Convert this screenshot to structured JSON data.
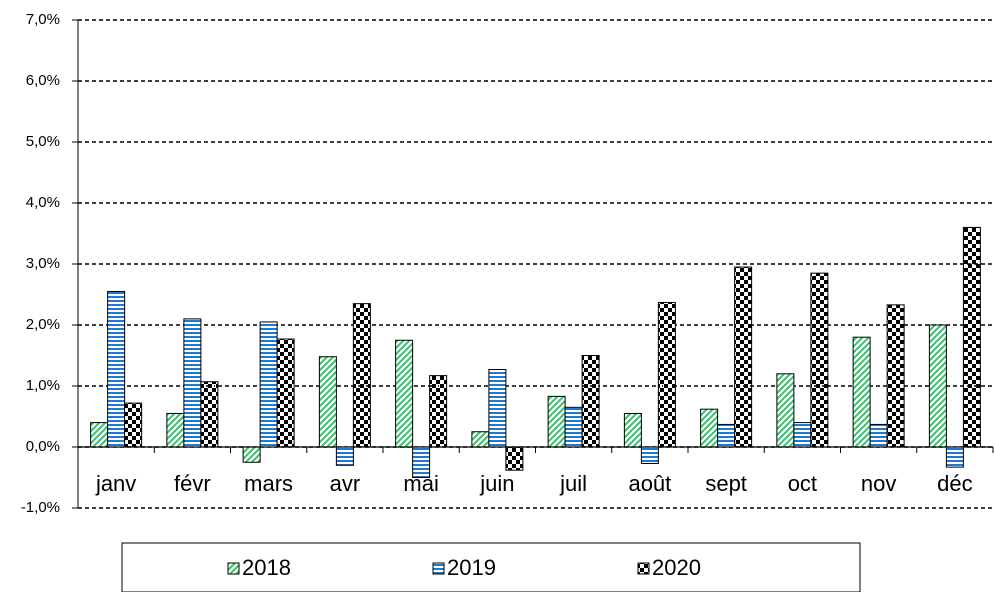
{
  "chart_data": {
    "type": "bar",
    "categories": [
      "janv",
      "févr",
      "mars",
      "avr",
      "mai",
      "juin",
      "juil",
      "août",
      "sept",
      "oct",
      "nov",
      "déc"
    ],
    "series": [
      {
        "name": "2018",
        "color": "#33c36a",
        "pattern": "diagonal",
        "values": [
          0.4,
          0.55,
          -0.25,
          1.48,
          1.75,
          0.25,
          0.83,
          0.55,
          0.62,
          1.2,
          1.8,
          2.0
        ]
      },
      {
        "name": "2019",
        "color": "#1f78d1",
        "pattern": "horizontal",
        "values": [
          2.55,
          2.1,
          2.05,
          -0.3,
          -0.5,
          1.27,
          0.65,
          -0.27,
          0.37,
          0.4,
          0.37,
          -0.33
        ]
      },
      {
        "name": "2020",
        "color": "#000000",
        "pattern": "checker",
        "values": [
          0.72,
          1.07,
          1.77,
          2.35,
          1.17,
          -0.38,
          1.5,
          2.37,
          2.95,
          2.85,
          2.33,
          3.6
        ]
      }
    ],
    "ylim": [
      -1,
      7
    ],
    "yticks": [
      {
        "value": -1,
        "label": "-1,0%"
      },
      {
        "value": 0,
        "label": "0,0%"
      },
      {
        "value": 1,
        "label": "1,0%"
      },
      {
        "value": 2,
        "label": "2,0%"
      },
      {
        "value": 3,
        "label": "3,0%"
      },
      {
        "value": 4,
        "label": "4,0%"
      },
      {
        "value": 5,
        "label": "5,0%"
      },
      {
        "value": 6,
        "label": "6,0%"
      },
      {
        "value": 7,
        "label": "7,0%"
      }
    ],
    "grid": true,
    "legend": "bottom"
  }
}
